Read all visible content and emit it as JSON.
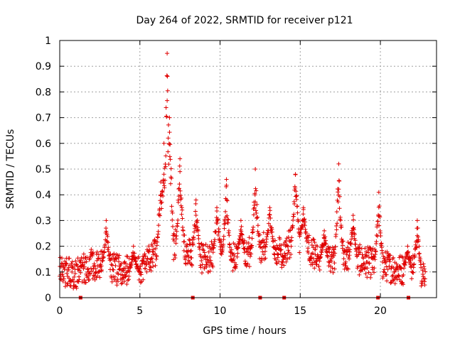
{
  "chart_data": {
    "type": "scatter",
    "title": "Day 264 of 2022, SRMTID for receiver p121",
    "xlabel": "GPS time / hours",
    "ylabel": "SRMTID / TECUs",
    "xlim": [
      0,
      23.5
    ],
    "ylim": [
      0,
      1
    ],
    "xticks": [
      0,
      5,
      10,
      15,
      20
    ],
    "xtick_labels": [
      "0",
      "5",
      "10",
      "15",
      "20"
    ],
    "yticks": [
      0,
      0.1,
      0.2,
      0.3,
      0.4,
      0.5,
      0.6,
      0.7,
      0.8,
      0.9,
      1
    ],
    "ytick_labels": [
      "0",
      "0.1",
      "0.2",
      "0.3",
      "0.4",
      "0.5",
      "0.6",
      "0.7",
      "0.8",
      "0.9",
      "1"
    ],
    "grid": true,
    "marker": "plus",
    "color": "#e00000",
    "zero_markers_x": [
      1.3,
      8.3,
      12.5,
      14.0,
      19.85,
      21.75
    ],
    "points_per_hour": 60,
    "trend": [
      [
        0,
        0.1
      ],
      [
        1,
        0.09
      ],
      [
        2,
        0.13
      ],
      [
        3,
        0.12
      ],
      [
        4,
        0.1
      ],
      [
        5,
        0.11
      ],
      [
        6,
        0.18
      ],
      [
        6.5,
        0.25
      ],
      [
        7,
        0.2
      ],
      [
        7.5,
        0.22
      ],
      [
        8,
        0.18
      ],
      [
        9,
        0.15
      ],
      [
        10,
        0.18
      ],
      [
        11,
        0.15
      ],
      [
        12,
        0.18
      ],
      [
        13,
        0.2
      ],
      [
        14,
        0.17
      ],
      [
        14.7,
        0.25
      ],
      [
        15.5,
        0.2
      ],
      [
        16,
        0.16
      ],
      [
        17,
        0.14
      ],
      [
        17.5,
        0.18
      ],
      [
        18,
        0.16
      ],
      [
        19,
        0.14
      ],
      [
        20,
        0.13
      ],
      [
        21,
        0.11
      ],
      [
        22,
        0.11
      ],
      [
        22.8,
        0.1
      ]
    ],
    "peaks": [
      [
        2.9,
        0.3
      ],
      [
        4.6,
        0.2
      ],
      [
        6.3,
        0.45
      ],
      [
        6.5,
        0.6
      ],
      [
        6.7,
        0.95
      ],
      [
        6.85,
        0.7
      ],
      [
        7.5,
        0.54
      ],
      [
        8.5,
        0.38
      ],
      [
        9.8,
        0.35
      ],
      [
        10.4,
        0.46
      ],
      [
        11.3,
        0.3
      ],
      [
        12.2,
        0.5
      ],
      [
        13.1,
        0.35
      ],
      [
        14.7,
        0.48
      ],
      [
        15.2,
        0.35
      ],
      [
        16.5,
        0.26
      ],
      [
        17.4,
        0.52
      ],
      [
        18.3,
        0.32
      ],
      [
        19.9,
        0.41
      ],
      [
        21.7,
        0.2
      ],
      [
        22.3,
        0.3
      ]
    ]
  }
}
